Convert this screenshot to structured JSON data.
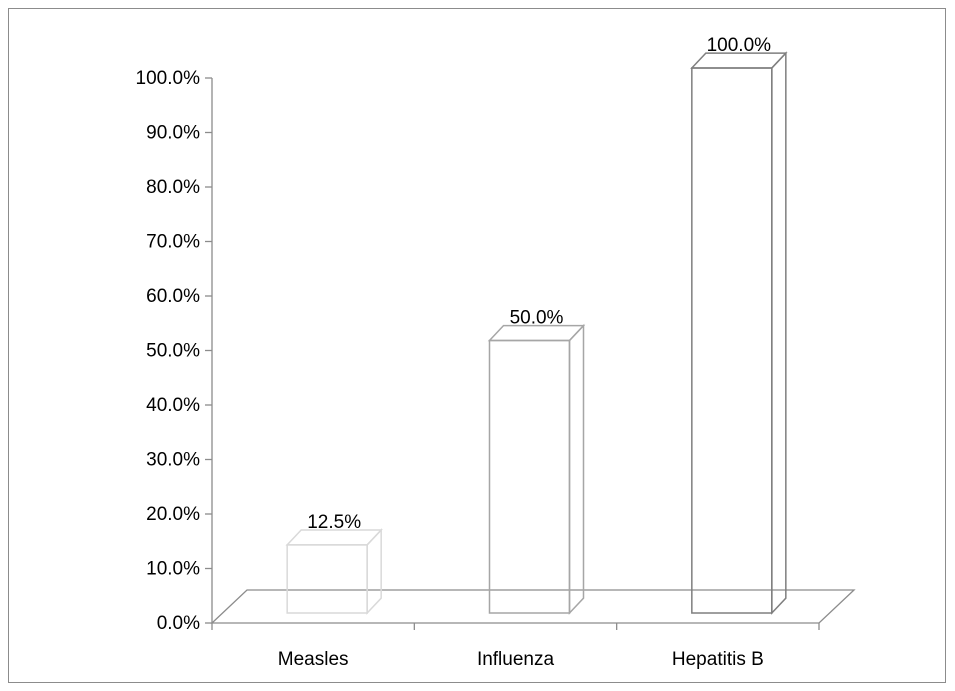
{
  "chart_data": {
    "type": "bar",
    "style": "3d-outline",
    "categories": [
      "Measles",
      "Influenza",
      "Hepatitis B"
    ],
    "values": [
      12.5,
      50.0,
      100.0
    ],
    "data_labels": [
      "12.5%",
      "50.0%",
      "100.0%"
    ],
    "title": "",
    "xlabel": "",
    "ylabel": "",
    "ylim": [
      0,
      100
    ],
    "y_ticks": [
      "0.0%",
      "10.0%",
      "20.0%",
      "30.0%",
      "40.0%",
      "50.0%",
      "60.0%",
      "70.0%",
      "80.0%",
      "90.0%",
      "100.0%"
    ],
    "grid": false,
    "legend": "none",
    "bar_colors": [
      "#d9d9d9",
      "#a6a6a6",
      "#7f7f7f"
    ],
    "axis_color": "#8c8c8c"
  }
}
